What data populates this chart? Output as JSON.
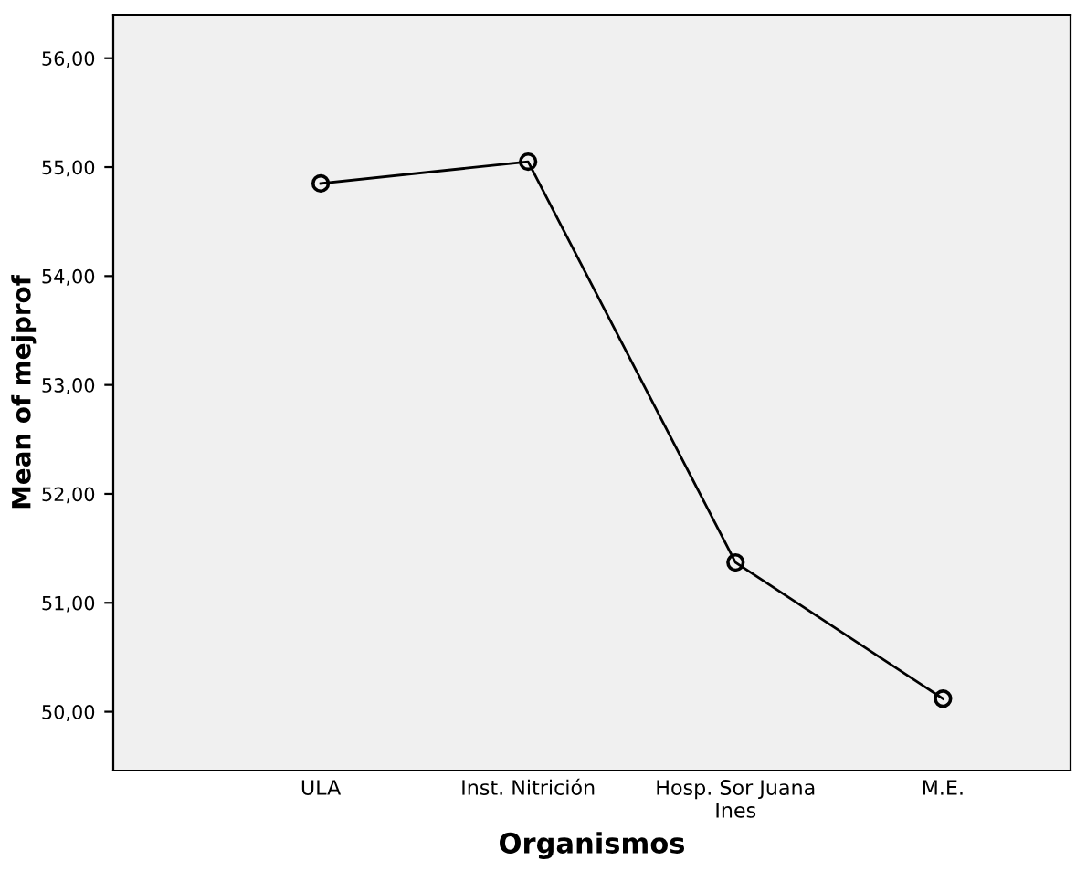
{
  "chart_data": {
    "type": "line",
    "xlabel": "Organismos",
    "ylabel": "Mean of mejprof",
    "categories": [
      "ULA",
      "Inst. Nitrición",
      "Hosp. Sor Juana\nInes",
      "M.E."
    ],
    "series": [
      {
        "color": "#000000",
        "values": [
          54.85,
          55.05,
          51.37,
          50.12
        ]
      }
    ],
    "ylim": [
      49.46,
      56.4
    ],
    "yticks": [
      {
        "value": 50,
        "label": "50,00"
      },
      {
        "value": 51,
        "label": "51,00"
      },
      {
        "value": 52,
        "label": "52,00"
      },
      {
        "value": 53,
        "label": "53,00"
      },
      {
        "value": 54,
        "label": "54,00"
      },
      {
        "value": 55,
        "label": "55,00"
      },
      {
        "value": 56,
        "label": "56,00"
      }
    ],
    "marker": "circle",
    "line_style": "solid",
    "grid": false,
    "legend": false
  }
}
